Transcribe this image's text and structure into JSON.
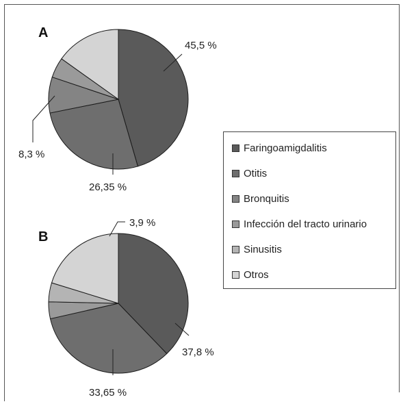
{
  "chart_data": [
    {
      "type": "pie",
      "panel": "A",
      "categories": [
        "Faringoamigdalitis",
        "Otitis",
        "Bronquitis",
        "Infección del tracto urinario",
        "Sinusitis",
        "Otros"
      ],
      "values": [
        45.5,
        26.35,
        8.3,
        4.7,
        0,
        15.15
      ],
      "labels": [
        "45,5 %",
        "26,35 %",
        "8,3 %"
      ]
    },
    {
      "type": "pie",
      "panel": "B",
      "categories": [
        "Faringoamigdalitis",
        "Otitis",
        "Bronquitis",
        "Infección del tracto urinario",
        "Sinusitis",
        "Otros"
      ],
      "values": [
        37.8,
        33.65,
        0,
        3.9,
        4.4,
        20.25
      ],
      "labels": [
        "37,8 %",
        "33,65 %",
        "3,9 %"
      ]
    }
  ],
  "legend": [
    {
      "label": "Faringoamigdalitis",
      "color": "#5a5a5a"
    },
    {
      "label": "Otitis",
      "color": "#6e6e6e"
    },
    {
      "label": "Bronquitis",
      "color": "#848484"
    },
    {
      "label": "Infección del tracto urinario",
      "color": "#9a9a9a"
    },
    {
      "label": "Sinusitis",
      "color": "#b4b4b4"
    },
    {
      "label": "Otros",
      "color": "#d4d4d4"
    }
  ]
}
